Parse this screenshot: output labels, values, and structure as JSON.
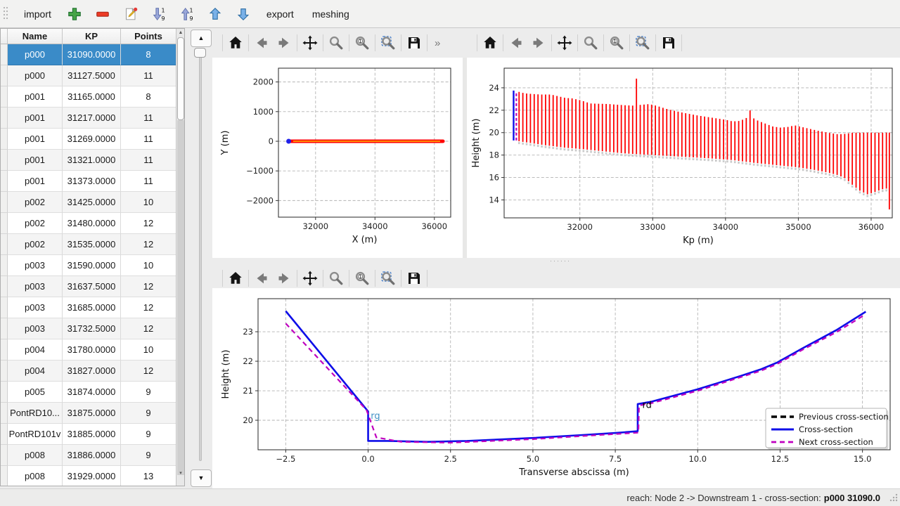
{
  "colors": {
    "selected_row_bg": "#3a8bc8",
    "red_line": "#ff0000",
    "blue_line": "#0e0ee8",
    "magenta_line": "#bf00bf",
    "orange_line": "#ff8c00",
    "shadow": "#c9c9c9",
    "grid": "#b3b3b3",
    "spine": "#262626"
  },
  "main_toolbar": {
    "items": [
      {
        "kind": "text",
        "name": "import-button",
        "label": "import"
      },
      {
        "kind": "icon",
        "name": "add-section-button",
        "icon": "plus-icon"
      },
      {
        "kind": "icon",
        "name": "remove-section-button",
        "icon": "minus-icon"
      },
      {
        "kind": "icon",
        "name": "edit-section-button",
        "icon": "edit-icon"
      },
      {
        "kind": "icon",
        "name": "sort-descending-button",
        "icon": "sort-down-icon"
      },
      {
        "kind": "icon",
        "name": "sort-ascending-button",
        "icon": "sort-up-icon"
      },
      {
        "kind": "icon",
        "name": "move-up-button",
        "icon": "arrow-up-icon"
      },
      {
        "kind": "icon",
        "name": "move-down-button",
        "icon": "arrow-down-icon"
      },
      {
        "kind": "text",
        "name": "export-button",
        "label": "export"
      },
      {
        "kind": "text",
        "name": "meshing-button",
        "label": "meshing"
      }
    ]
  },
  "table": {
    "columns": [
      "Name",
      "KP",
      "Points"
    ],
    "selected_row": 0,
    "rows": [
      [
        "p000",
        "31090.0000",
        "8"
      ],
      [
        "p000",
        "31127.5000",
        "11"
      ],
      [
        "p001",
        "31165.0000",
        "8"
      ],
      [
        "p001",
        "31217.0000",
        "11"
      ],
      [
        "p001",
        "31269.0000",
        "11"
      ],
      [
        "p001",
        "31321.0000",
        "11"
      ],
      [
        "p001",
        "31373.0000",
        "11"
      ],
      [
        "p002",
        "31425.0000",
        "10"
      ],
      [
        "p002",
        "31480.0000",
        "12"
      ],
      [
        "p002",
        "31535.0000",
        "12"
      ],
      [
        "p003",
        "31590.0000",
        "10"
      ],
      [
        "p003",
        "31637.5000",
        "12"
      ],
      [
        "p003",
        "31685.0000",
        "12"
      ],
      [
        "p003",
        "31732.5000",
        "12"
      ],
      [
        "p004",
        "31780.0000",
        "10"
      ],
      [
        "p004",
        "31827.0000",
        "12"
      ],
      [
        "p005",
        "31874.0000",
        "9"
      ],
      [
        "PontRD10...",
        "31875.0000",
        "9"
      ],
      [
        "PontRD101v",
        "31885.0000",
        "9"
      ],
      [
        "p008",
        "31886.0000",
        "9"
      ],
      [
        "p008",
        "31929.0000",
        "13"
      ]
    ]
  },
  "mpl_toolbar": {
    "buttons": [
      "home",
      "back",
      "forward",
      "pan",
      "zoom",
      "zoom-in",
      "zoom-region",
      "save"
    ],
    "overflow": "»"
  },
  "status_bar": {
    "prefix": "reach: Node 2 -> Downstream 1 - cross-section: ",
    "value": "p000 31090.0"
  },
  "chart_data": [
    {
      "id": "plan",
      "type": "scatter",
      "xlabel": "X (m)",
      "ylabel": "Y (m)",
      "xlim": [
        30750,
        36550
      ],
      "ylim": [
        -2560,
        2465
      ],
      "grid": true,
      "xticks": [
        {
          "v": 32000,
          "l": "32000"
        },
        {
          "v": 34000,
          "l": "34000"
        },
        {
          "v": 36000,
          "l": "36000"
        }
      ],
      "yticks": [
        {
          "v": -2000,
          "l": "−2000"
        },
        {
          "v": -1000,
          "l": "−1000"
        },
        {
          "v": 0,
          "l": "0"
        },
        {
          "v": 1000,
          "l": "1000"
        },
        {
          "v": 2000,
          "l": "2000"
        }
      ],
      "band": {
        "x_start": 31150,
        "x_end": 36290,
        "y": 0,
        "marker_color": "#ff0000",
        "center_color": "#ff8c00"
      },
      "start_point": {
        "x": 31095,
        "y": 0,
        "color": "#2020e8"
      }
    },
    {
      "id": "longitudinal",
      "type": "line",
      "xlabel": "Kp (m)",
      "ylabel": "Height (m)",
      "xlim": [
        30960,
        36290
      ],
      "ylim": [
        12.4,
        25.75
      ],
      "grid": true,
      "xticks": [
        {
          "v": 32000,
          "l": "32000"
        },
        {
          "v": 33000,
          "l": "33000"
        },
        {
          "v": 34000,
          "l": "34000"
        },
        {
          "v": 35000,
          "l": "35000"
        },
        {
          "v": 36000,
          "l": "36000"
        }
      ],
      "yticks": [
        {
          "v": 14,
          "l": "14"
        },
        {
          "v": 16,
          "l": "16"
        },
        {
          "v": 18,
          "l": "18"
        },
        {
          "v": 20,
          "l": "20"
        },
        {
          "v": 22,
          "l": "22"
        },
        {
          "v": 24,
          "l": "24"
        }
      ],
      "sections": {
        "kp_start": 31165,
        "kp_end": 36220,
        "spacing": 52,
        "color": "#ff0000"
      },
      "top_envelope": [
        [
          31090,
          23.75
        ],
        [
          31250,
          23.5
        ],
        [
          31450,
          23.4
        ],
        [
          31600,
          23.4
        ],
        [
          31800,
          23.1
        ],
        [
          31900,
          23.05
        ],
        [
          32000,
          22.9
        ],
        [
          32150,
          22.6
        ],
        [
          32400,
          22.55
        ],
        [
          32600,
          22.45
        ],
        [
          32770,
          22.4
        ],
        [
          32776,
          25.0
        ],
        [
          32790,
          22.45
        ],
        [
          32950,
          22.55
        ],
        [
          33050,
          22.4
        ],
        [
          33200,
          22.1
        ],
        [
          33400,
          21.8
        ],
        [
          33600,
          21.55
        ],
        [
          33800,
          21.35
        ],
        [
          34000,
          21.15
        ],
        [
          34100,
          21.0
        ],
        [
          34200,
          21.05
        ],
        [
          34300,
          21.35
        ],
        [
          34341,
          22.05
        ],
        [
          34380,
          21.3
        ],
        [
          34450,
          21.05
        ],
        [
          34550,
          20.8
        ],
        [
          34650,
          20.55
        ],
        [
          34750,
          20.45
        ],
        [
          34850,
          20.5
        ],
        [
          34950,
          20.65
        ],
        [
          35050,
          20.5
        ],
        [
          35150,
          20.35
        ],
        [
          35250,
          20.2
        ],
        [
          35400,
          20.0
        ],
        [
          35550,
          19.85
        ],
        [
          35650,
          19.9
        ],
        [
          35750,
          20.0
        ],
        [
          36250,
          20.0
        ]
      ],
      "bottom_envelope": [
        [
          31090,
          19.3
        ],
        [
          31300,
          19.1
        ],
        [
          31500,
          18.9
        ],
        [
          31800,
          18.65
        ],
        [
          32000,
          18.55
        ],
        [
          32300,
          18.35
        ],
        [
          32600,
          18.15
        ],
        [
          33000,
          18.0
        ],
        [
          33400,
          17.85
        ],
        [
          33800,
          17.7
        ],
        [
          34100,
          17.55
        ],
        [
          34400,
          17.3
        ],
        [
          34700,
          17.1
        ],
        [
          35000,
          16.9
        ],
        [
          35200,
          16.7
        ],
        [
          35400,
          16.45
        ],
        [
          35550,
          16.2
        ],
        [
          35650,
          15.9
        ],
        [
          35750,
          15.3
        ],
        [
          35850,
          14.8
        ],
        [
          35950,
          14.5
        ],
        [
          36050,
          14.7
        ],
        [
          36150,
          14.95
        ],
        [
          36250,
          15.05
        ]
      ],
      "selected_section": {
        "kp": 31090,
        "zmin": 19.3,
        "zmax": 23.75,
        "color": "#0e0ee8"
      },
      "next_section": {
        "kp": 31127.5,
        "zmin": 19.3,
        "zmax": 23.55,
        "color": "#bf00bf",
        "dash": true
      },
      "last_section": {
        "kp": 36250,
        "zmin": 13.15,
        "zmax": 20.0
      },
      "shadow_color": "#c9c9c9"
    },
    {
      "id": "cross-section",
      "type": "line",
      "xlabel": "Transverse abscissa (m)",
      "ylabel": "Height (m)",
      "xlim": [
        -3.34,
        15.84
      ],
      "ylim": [
        19.0,
        24.12
      ],
      "grid": true,
      "xticks": [
        {
          "v": -2.5,
          "l": "−2.5"
        },
        {
          "v": 0,
          "l": "0.0"
        },
        {
          "v": 2.5,
          "l": "2.5"
        },
        {
          "v": 5,
          "l": "5.0"
        },
        {
          "v": 7.5,
          "l": "7.5"
        },
        {
          "v": 10,
          "l": "10.0"
        },
        {
          "v": 12.5,
          "l": "12.5"
        },
        {
          "v": 15,
          "l": "15.0"
        }
      ],
      "yticks": [
        {
          "v": 20,
          "l": "20"
        },
        {
          "v": 21,
          "l": "21"
        },
        {
          "v": 22,
          "l": "22"
        },
        {
          "v": 23,
          "l": "23"
        }
      ],
      "series": [
        {
          "name": "Previous cross-section",
          "color": "#000000",
          "dash": "8,5",
          "width": 3,
          "points": []
        },
        {
          "name": "Cross-section",
          "color": "#0e0ee8",
          "dash": null,
          "width": 2.6,
          "points": [
            [
              -2.5,
              23.7
            ],
            [
              0,
              20.3
            ],
            [
              0,
              19.3
            ],
            [
              0.6,
              19.3
            ],
            [
              1.8,
              19.27
            ],
            [
              3,
              19.3
            ],
            [
              5,
              19.4
            ],
            [
              6.5,
              19.5
            ],
            [
              7.5,
              19.57
            ],
            [
              8.18,
              19.63
            ],
            [
              8.18,
              20.55
            ],
            [
              8.6,
              20.63
            ],
            [
              10,
              21.05
            ],
            [
              11.3,
              21.5
            ],
            [
              11.9,
              21.72
            ],
            [
              12.4,
              21.95
            ],
            [
              13.2,
              22.45
            ],
            [
              14.2,
              23.05
            ],
            [
              15.1,
              23.68
            ]
          ]
        },
        {
          "name": "Next cross-section",
          "color": "#bf00bf",
          "dash": "7,5",
          "width": 2.2,
          "points": [
            [
              -2.5,
              23.28
            ],
            [
              -0.05,
              20.35
            ],
            [
              0.25,
              19.42
            ],
            [
              1,
              19.27
            ],
            [
              2.5,
              19.24
            ],
            [
              5,
              19.36
            ],
            [
              7,
              19.5
            ],
            [
              8.2,
              19.58
            ],
            [
              8.22,
              20.5
            ],
            [
              8.6,
              20.58
            ],
            [
              10,
              21.0
            ],
            [
              11.9,
              21.67
            ],
            [
              12.4,
              21.9
            ],
            [
              13.2,
              22.4
            ],
            [
              14.2,
              22.98
            ],
            [
              15.05,
              23.56
            ]
          ]
        }
      ],
      "annotations": [
        {
          "text": "rg",
          "x": 0.08,
          "y": 20.05,
          "color": "#4292c6"
        },
        {
          "text": "rd",
          "x": 8.32,
          "y": 20.42,
          "color": "#000000"
        }
      ],
      "legend": {
        "position": "lower right",
        "entries": [
          "Previous cross-section",
          "Cross-section",
          "Next cross-section"
        ]
      }
    }
  ]
}
